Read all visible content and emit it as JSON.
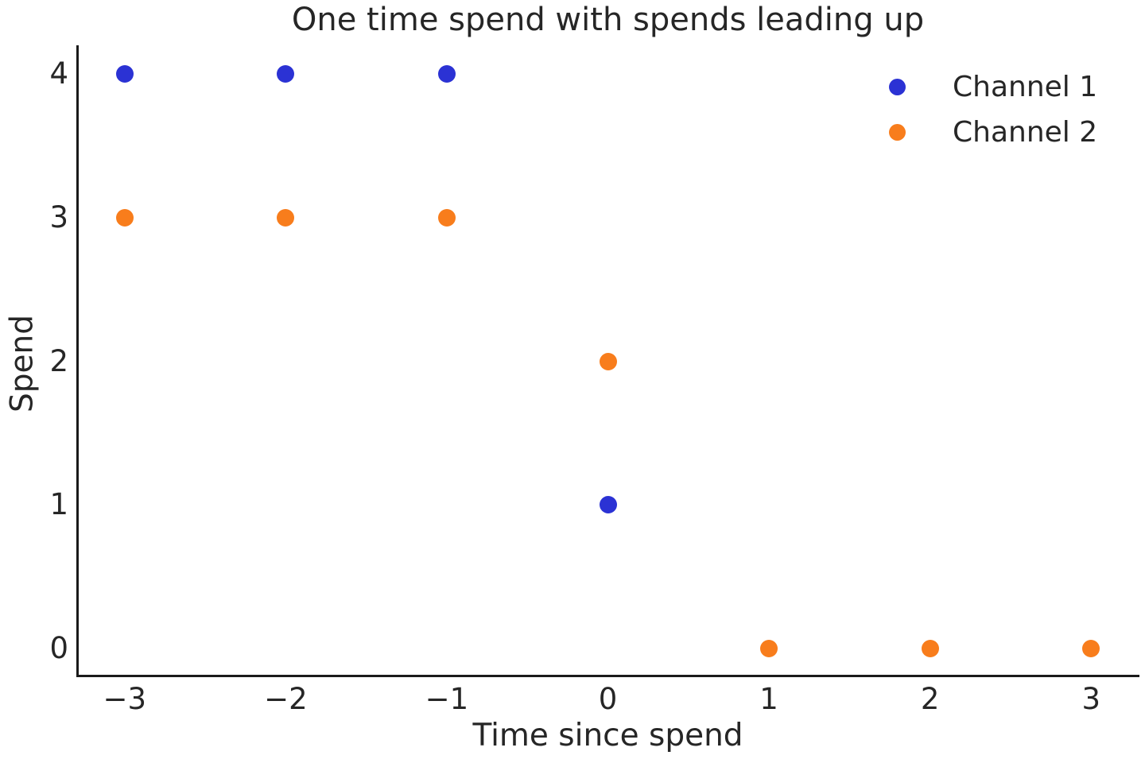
{
  "chart_data": {
    "type": "scatter",
    "title": "One time spend with spends leading up",
    "xlabel": "Time since spend",
    "ylabel": "Spend",
    "xlim": [
      -3.3,
      3.3
    ],
    "ylim": [
      -0.2,
      4.2
    ],
    "grid": false,
    "legend_position": "upper right",
    "xticks": [
      {
        "value": -3,
        "label": "−3"
      },
      {
        "value": -2,
        "label": "−2"
      },
      {
        "value": -1,
        "label": "−1"
      },
      {
        "value": 0,
        "label": "0"
      },
      {
        "value": 1,
        "label": "1"
      },
      {
        "value": 2,
        "label": "2"
      },
      {
        "value": 3,
        "label": "3"
      }
    ],
    "yticks": [
      {
        "value": 0,
        "label": "0"
      },
      {
        "value": 1,
        "label": "1"
      },
      {
        "value": 2,
        "label": "2"
      },
      {
        "value": 3,
        "label": "3"
      },
      {
        "value": 4,
        "label": "4"
      }
    ],
    "series": [
      {
        "name": "Channel 1",
        "color": "#2b32d4",
        "points": [
          [
            -3,
            4
          ],
          [
            -2,
            4
          ],
          [
            -1,
            4
          ],
          [
            0,
            1
          ]
        ]
      },
      {
        "name": "Channel 2",
        "color": "#f87d1c",
        "points": [
          [
            -3,
            3
          ],
          [
            -2,
            3
          ],
          [
            -1,
            3
          ],
          [
            0,
            2
          ],
          [
            1,
            0
          ],
          [
            2,
            0
          ],
          [
            3,
            0
          ]
        ]
      }
    ]
  },
  "colors": {
    "text": "#262626",
    "spine": "#1a1a1a",
    "background": "#ffffff"
  }
}
